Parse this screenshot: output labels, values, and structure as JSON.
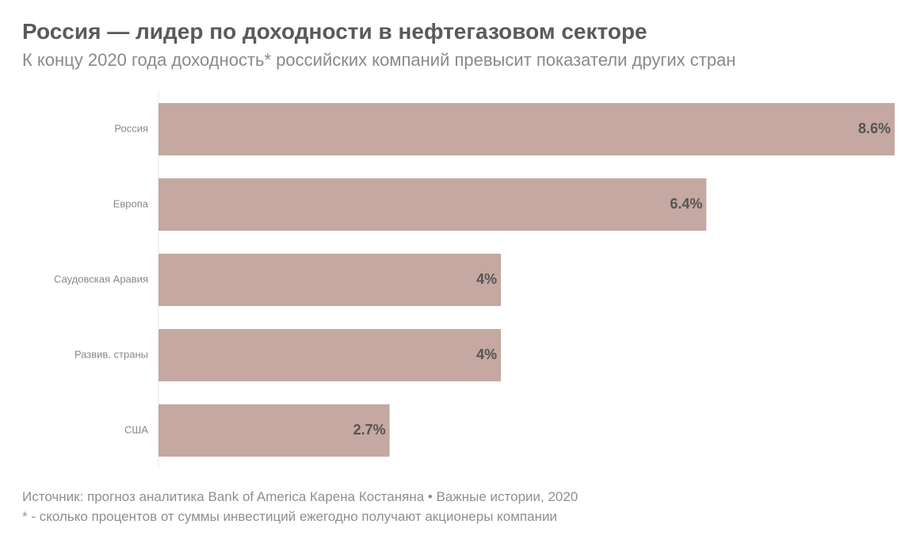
{
  "header": {
    "title": "Россия — лидер по доходности в нефтегазовом секторе",
    "subtitle": "К концу 2020 года доходность* российских компаний превысит показатели других стран"
  },
  "footer": {
    "source": "Источник: прогноз аналитика Bank of America Карена Костаняна • Важные истории, 2020",
    "note": "* - сколько процентов от суммы инвестиций ежегодно получают акционеры компании"
  },
  "colors": {
    "bar": "#c4a8a1",
    "value_label": "#555555",
    "category_label": "#888888",
    "axis": "#e6e6e6"
  },
  "chart_data": {
    "type": "bar",
    "orientation": "horizontal",
    "title": "Россия — лидер по доходности в нефтегазовом секторе",
    "subtitle": "К концу 2020 года доходность* российских компаний превысит показатели других стран",
    "categories": [
      "Россия",
      "Европа",
      "Саудовская Аравия",
      "Развив. страны",
      "США"
    ],
    "values": [
      8.6,
      6.4,
      4,
      4,
      2.7
    ],
    "value_labels": [
      "8.6%",
      "6.4%",
      "4%",
      "4%",
      "2.7%"
    ],
    "unit": "%",
    "xlim": [
      0,
      8.6
    ],
    "grid": false,
    "legend": "none"
  }
}
